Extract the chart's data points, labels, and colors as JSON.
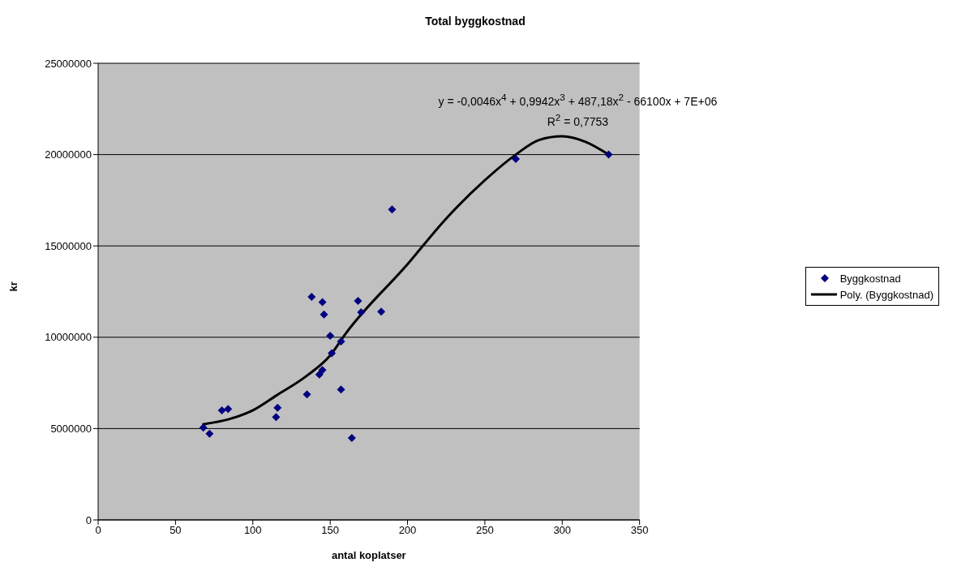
{
  "chart_data": {
    "type": "scatter",
    "title": "Total byggkostnad",
    "xlabel": "antal koplatser",
    "ylabel": "kr",
    "xlim": [
      0,
      350
    ],
    "xticks": [
      0,
      50,
      100,
      150,
      200,
      250,
      300,
      350
    ],
    "ylim": [
      0,
      25000000
    ],
    "yticks": [
      0,
      5000000,
      10000000,
      15000000,
      20000000,
      25000000
    ],
    "grid": "y",
    "legend": "right",
    "annotations": [
      "y = -0,0046x$^{4}$ + 0,9942x$^{3}$ + 487,18x$^{2}$ - 66100x + 7E+06",
      "R$^{2}$ = 0,7753"
    ],
    "series": [
      {
        "name": "Byggkostnad",
        "marker": "diamond",
        "color": "#000080",
        "x": [
          68,
          72,
          80,
          84,
          115,
          116,
          135,
          143,
          145,
          150,
          151,
          157,
          157,
          164,
          190,
          138,
          145,
          146,
          168,
          170,
          183,
          270,
          330
        ],
        "values": [
          5050000,
          4720000,
          6000000,
          6070000,
          5630000,
          6140000,
          6870000,
          7960000,
          8200000,
          10080000,
          9130000,
          9770000,
          7140000,
          4480000,
          17000000,
          12210000,
          11920000,
          11250000,
          11990000,
          11370000,
          11400000,
          19760000,
          20000000
        ]
      },
      {
        "name": "Poly. (Byggkostnad)",
        "type": "line",
        "color": "#000000",
        "line_style": "solid",
        "marker": "none",
        "x": [
          68,
          84,
          100,
          115,
          135,
          150,
          160,
          200,
          225,
          250,
          270,
          285,
          300,
          315,
          330
        ],
        "values": [
          5240000,
          5500000,
          6000000,
          6800000,
          7900000,
          9000000,
          10200000,
          14000000,
          16500000,
          18600000,
          20000000,
          20800000,
          21000000,
          20700000,
          20000000
        ]
      }
    ]
  }
}
